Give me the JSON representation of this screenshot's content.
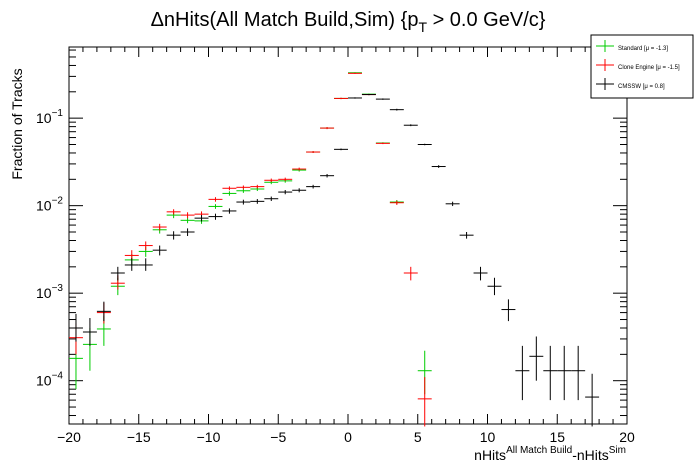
{
  "chart_data": {
    "type": "scatter",
    "title": "ΔnHits(All Match Build,Sim) {p",
    "title_sub": "T",
    "title_tail": " > 0.0 GeV/c}",
    "xlabel_main": "nHits",
    "xlabel_sup1": "All Match Build",
    "xlabel_mid": "-nHits",
    "xlabel_sup2": "Sim",
    "ylabel": "Fraction of Tracks",
    "xlim": [
      -20,
      20
    ],
    "ylog": true,
    "ylim": [
      3.2e-05,
      0.65
    ],
    "xticks": [
      -20,
      -15,
      -10,
      -5,
      0,
      5,
      10,
      15,
      20
    ],
    "xtick_labels": [
      "−20",
      "−15",
      "−10",
      "−5",
      "0",
      "5",
      "10",
      "15",
      "20"
    ],
    "ytick_labels": [
      {
        "value": 0.0001,
        "base": "10",
        "exp": "−4"
      },
      {
        "value": 0.001,
        "base": "10",
        "exp": "−3"
      },
      {
        "value": 0.01,
        "base": "10",
        "exp": "−2"
      },
      {
        "value": 0.1,
        "base": "10",
        "exp": "−1"
      }
    ],
    "legend": {
      "position": "top-right",
      "entries": [
        {
          "label": "Standard  [μ = -1.3]",
          "color": "#00cc00"
        },
        {
          "label": "Clone Engine  [μ = -1.5]",
          "color": "#ff0000"
        },
        {
          "label": "CMSSW  [μ =  0.8]",
          "color": "#000000"
        }
      ]
    },
    "series": [
      {
        "name": "Standard",
        "color": "#00cc00",
        "points": [
          {
            "x": -19.5,
            "y": 0.00018,
            "lo": 8e-05,
            "hi": 0.0003
          },
          {
            "x": -18.5,
            "y": 0.00026,
            "lo": 0.00013,
            "hi": 0.0004
          },
          {
            "x": -17.5,
            "y": 0.00039,
            "lo": 0.00025,
            "hi": 0.00055
          },
          {
            "x": -16.5,
            "y": 0.0012,
            "lo": 0.00095,
            "hi": 0.0015
          },
          {
            "x": -15.5,
            "y": 0.0024,
            "lo": 0.0021,
            "hi": 0.0028
          },
          {
            "x": -14.5,
            "y": 0.003,
            "lo": 0.0026,
            "hi": 0.0034
          },
          {
            "x": -13.5,
            "y": 0.0053,
            "lo": 0.0048,
            "hi": 0.0058
          },
          {
            "x": -12.5,
            "y": 0.0078,
            "lo": 0.0072,
            "hi": 0.0084
          },
          {
            "x": -11.5,
            "y": 0.0068,
            "lo": 0.0063,
            "hi": 0.0073
          },
          {
            "x": -10.5,
            "y": 0.0067,
            "lo": 0.0062,
            "hi": 0.0072
          },
          {
            "x": -9.5,
            "y": 0.0098,
            "lo": 0.0092,
            "hi": 0.0104
          },
          {
            "x": -8.5,
            "y": 0.0138,
            "lo": 0.013,
            "hi": 0.0146
          },
          {
            "x": -7.5,
            "y": 0.0148,
            "lo": 0.014,
            "hi": 0.0156
          },
          {
            "x": -6.5,
            "y": 0.0155,
            "lo": 0.0147,
            "hi": 0.0163
          },
          {
            "x": -5.5,
            "y": 0.0185,
            "lo": 0.0176,
            "hi": 0.0194
          },
          {
            "x": -4.5,
            "y": 0.0192,
            "lo": 0.0183,
            "hi": 0.0201
          },
          {
            "x": -3.5,
            "y": 0.0255,
            "lo": 0.0245,
            "hi": 0.0265
          },
          {
            "x": -2.5,
            "y": 0.041,
            "lo": 0.04,
            "hi": 0.042
          },
          {
            "x": -1.5,
            "y": 0.077,
            "lo": 0.075,
            "hi": 0.079
          },
          {
            "x": -0.5,
            "y": 0.168,
            "lo": 0.165,
            "hi": 0.171
          },
          {
            "x": 0.5,
            "y": 0.33,
            "lo": 0.326,
            "hi": 0.334
          },
          {
            "x": 1.5,
            "y": 0.188,
            "lo": 0.185,
            "hi": 0.191
          },
          {
            "x": 2.5,
            "y": 0.052,
            "lo": 0.051,
            "hi": 0.053
          },
          {
            "x": 3.5,
            "y": 0.011,
            "lo": 0.0104,
            "hi": 0.0116
          },
          {
            "x": 5.5,
            "y": 0.00013,
            "lo": 7e-05,
            "hi": 0.00022
          }
        ]
      },
      {
        "name": "Clone Engine",
        "color": "#ff0000",
        "points": [
          {
            "x": -19.5,
            "y": 0.00031,
            "lo": 0.0002,
            "hi": 0.00045
          },
          {
            "x": -17.5,
            "y": 0.0006,
            "lo": 0.00045,
            "hi": 0.00078
          },
          {
            "x": -16.5,
            "y": 0.0013,
            "lo": 0.0011,
            "hi": 0.0016
          },
          {
            "x": -15.5,
            "y": 0.0027,
            "lo": 0.0024,
            "hi": 0.0031
          },
          {
            "x": -14.5,
            "y": 0.0035,
            "lo": 0.0031,
            "hi": 0.0039
          },
          {
            "x": -13.5,
            "y": 0.0057,
            "lo": 0.0052,
            "hi": 0.0062
          },
          {
            "x": -12.5,
            "y": 0.0085,
            "lo": 0.0079,
            "hi": 0.0091
          },
          {
            "x": -11.5,
            "y": 0.0078,
            "lo": 0.0072,
            "hi": 0.0084
          },
          {
            "x": -10.5,
            "y": 0.008,
            "lo": 0.0074,
            "hi": 0.0086
          },
          {
            "x": -9.5,
            "y": 0.0118,
            "lo": 0.0111,
            "hi": 0.0125
          },
          {
            "x": -8.5,
            "y": 0.0158,
            "lo": 0.015,
            "hi": 0.0166
          },
          {
            "x": -7.5,
            "y": 0.0162,
            "lo": 0.0154,
            "hi": 0.017
          },
          {
            "x": -6.5,
            "y": 0.0165,
            "lo": 0.0157,
            "hi": 0.0173
          },
          {
            "x": -5.5,
            "y": 0.0195,
            "lo": 0.0186,
            "hi": 0.0204
          },
          {
            "x": -4.5,
            "y": 0.02,
            "lo": 0.0191,
            "hi": 0.0209
          },
          {
            "x": -3.5,
            "y": 0.0262,
            "lo": 0.0252,
            "hi": 0.0272
          },
          {
            "x": -2.5,
            "y": 0.041,
            "lo": 0.04,
            "hi": 0.042
          },
          {
            "x": -1.5,
            "y": 0.077,
            "lo": 0.075,
            "hi": 0.079
          },
          {
            "x": -0.5,
            "y": 0.168,
            "lo": 0.165,
            "hi": 0.171
          },
          {
            "x": 0.5,
            "y": 0.325,
            "lo": 0.321,
            "hi": 0.329
          },
          {
            "x": 1.5,
            "y": 0.186,
            "lo": 0.183,
            "hi": 0.189
          },
          {
            "x": 2.5,
            "y": 0.0515,
            "lo": 0.0505,
            "hi": 0.0525
          },
          {
            "x": 3.5,
            "y": 0.0108,
            "lo": 0.0102,
            "hi": 0.0114
          },
          {
            "x": 4.5,
            "y": 0.0017,
            "lo": 0.0014,
            "hi": 0.002
          },
          {
            "x": 5.5,
            "y": 6.2e-05,
            "lo": 3e-05,
            "hi": 0.00011
          }
        ]
      },
      {
        "name": "CMSSW",
        "color": "#000000",
        "points": [
          {
            "x": -19.5,
            "y": 0.0004,
            "lo": 0.00028,
            "hi": 0.00058
          },
          {
            "x": -18.5,
            "y": 0.00036,
            "lo": 0.00025,
            "hi": 0.00052
          },
          {
            "x": -17.5,
            "y": 0.00062,
            "lo": 0.00048,
            "hi": 0.0008
          },
          {
            "x": -16.5,
            "y": 0.0017,
            "lo": 0.0014,
            "hi": 0.002
          },
          {
            "x": -15.5,
            "y": 0.0021,
            "lo": 0.0018,
            "hi": 0.0025
          },
          {
            "x": -14.5,
            "y": 0.0021,
            "lo": 0.0018,
            "hi": 0.0025
          },
          {
            "x": -13.5,
            "y": 0.0031,
            "lo": 0.0027,
            "hi": 0.0035
          },
          {
            "x": -12.5,
            "y": 0.0046,
            "lo": 0.0041,
            "hi": 0.0051
          },
          {
            "x": -11.5,
            "y": 0.005,
            "lo": 0.0045,
            "hi": 0.0055
          },
          {
            "x": -10.5,
            "y": 0.0072,
            "lo": 0.0066,
            "hi": 0.0078
          },
          {
            "x": -9.5,
            "y": 0.0075,
            "lo": 0.0069,
            "hi": 0.0081
          },
          {
            "x": -8.5,
            "y": 0.0087,
            "lo": 0.0081,
            "hi": 0.0093
          },
          {
            "x": -7.5,
            "y": 0.011,
            "lo": 0.0103,
            "hi": 0.0117
          },
          {
            "x": -6.5,
            "y": 0.0112,
            "lo": 0.0105,
            "hi": 0.0119
          },
          {
            "x": -5.5,
            "y": 0.012,
            "lo": 0.0113,
            "hi": 0.0127
          },
          {
            "x": -4.5,
            "y": 0.0143,
            "lo": 0.0135,
            "hi": 0.0151
          },
          {
            "x": -3.5,
            "y": 0.015,
            "lo": 0.0142,
            "hi": 0.0158
          },
          {
            "x": -2.5,
            "y": 0.0165,
            "lo": 0.0157,
            "hi": 0.0173
          },
          {
            "x": -1.5,
            "y": 0.022,
            "lo": 0.021,
            "hi": 0.023
          },
          {
            "x": -0.5,
            "y": 0.044,
            "lo": 0.043,
            "hi": 0.045
          },
          {
            "x": 0.5,
            "y": 0.17,
            "lo": 0.167,
            "hi": 0.173
          },
          {
            "x": 1.5,
            "y": 0.186,
            "lo": 0.183,
            "hi": 0.189
          },
          {
            "x": 2.5,
            "y": 0.165,
            "lo": 0.162,
            "hi": 0.168
          },
          {
            "x": 3.5,
            "y": 0.125,
            "lo": 0.122,
            "hi": 0.128
          },
          {
            "x": 4.5,
            "y": 0.083,
            "lo": 0.081,
            "hi": 0.085
          },
          {
            "x": 5.5,
            "y": 0.05,
            "lo": 0.049,
            "hi": 0.051
          },
          {
            "x": 6.5,
            "y": 0.028,
            "lo": 0.027,
            "hi": 0.029
          },
          {
            "x": 7.5,
            "y": 0.0105,
            "lo": 0.0099,
            "hi": 0.0111
          },
          {
            "x": 8.5,
            "y": 0.0046,
            "lo": 0.0042,
            "hi": 0.005
          },
          {
            "x": 9.5,
            "y": 0.0017,
            "lo": 0.0014,
            "hi": 0.002
          },
          {
            "x": 10.5,
            "y": 0.0012,
            "lo": 0.00095,
            "hi": 0.0015
          },
          {
            "x": 11.5,
            "y": 0.00065,
            "lo": 0.00048,
            "hi": 0.00085
          },
          {
            "x": 12.5,
            "y": 0.00013,
            "lo": 6e-05,
            "hi": 0.00025
          },
          {
            "x": 13.5,
            "y": 0.00019,
            "lo": 0.0001,
            "hi": 0.00032
          },
          {
            "x": 14.5,
            "y": 0.00013,
            "lo": 6e-05,
            "hi": 0.00025
          },
          {
            "x": 15.5,
            "y": 0.00013,
            "lo": 6e-05,
            "hi": 0.00025
          },
          {
            "x": 16.5,
            "y": 0.00013,
            "lo": 6e-05,
            "hi": 0.00025
          },
          {
            "x": 17.5,
            "y": 6.5e-05,
            "lo": 3e-05,
            "hi": 0.00012
          }
        ]
      }
    ]
  }
}
